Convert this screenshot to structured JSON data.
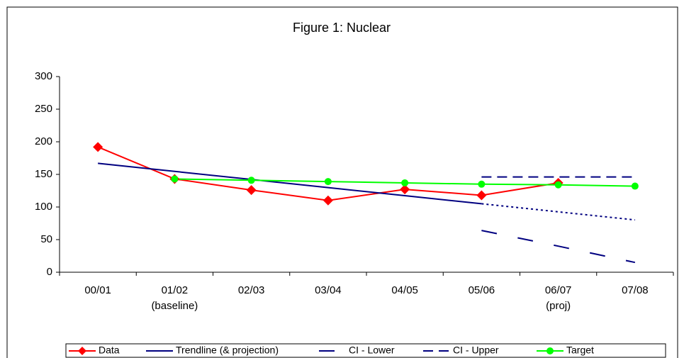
{
  "chart_data": {
    "type": "line",
    "title": "Figure 1: Nuclear",
    "categories": [
      "00/01",
      "01/02",
      "02/03",
      "03/04",
      "04/05",
      "05/06",
      "06/07",
      "07/08"
    ],
    "category_sublabels": [
      null,
      "(baseline)",
      null,
      null,
      null,
      null,
      "(proj)",
      null
    ],
    "ylim": [
      0,
      300
    ],
    "yticks": [
      0,
      50,
      100,
      150,
      200,
      250,
      300
    ],
    "series": [
      {
        "name": "Data",
        "color": "#ff0000",
        "marker": "diamond",
        "dash": "solid",
        "values": [
          192,
          143,
          126,
          110,
          127,
          118,
          137,
          null
        ]
      },
      {
        "name": "Trendline (& projection)",
        "color": "#000080",
        "marker": "none",
        "dash": "solid",
        "values": [
          167,
          154.6,
          142.2,
          129.8,
          117.4,
          105,
          null,
          null
        ],
        "projection": [
          null,
          null,
          null,
          null,
          null,
          105,
          92.6,
          80.2
        ]
      },
      {
        "name": "CI - Lower",
        "color": "#000080",
        "marker": "none",
        "dash": "long",
        "values": [
          null,
          null,
          null,
          null,
          null,
          64,
          40,
          15
        ]
      },
      {
        "name": "CI - Upper",
        "color": "#000080",
        "marker": "none",
        "dash": "medium",
        "values": [
          null,
          null,
          null,
          null,
          null,
          146,
          146,
          146
        ]
      },
      {
        "name": "Target",
        "color": "#00ff00",
        "marker": "circle",
        "dash": "solid",
        "values": [
          null,
          143,
          141,
          139,
          137,
          135,
          134,
          132
        ]
      }
    ]
  }
}
